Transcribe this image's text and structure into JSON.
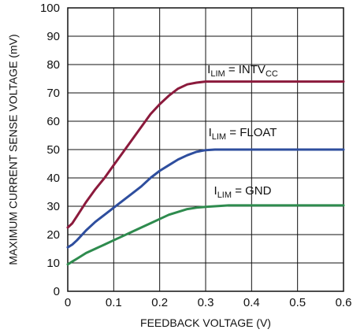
{
  "chart_data": {
    "type": "line",
    "title": "",
    "xlabel": "FEEDBACK VOLTAGE (V)",
    "ylabel": "MAXIMUM CURRENT SENSE VOLTAGE (mV)",
    "xlim": [
      0,
      0.6
    ],
    "ylim": [
      0,
      100
    ],
    "xticks": [
      "0",
      "0.1",
      "0.2",
      "0.3",
      "0.4",
      "0.5",
      "0.6"
    ],
    "yticks": [
      "0",
      "10",
      "20",
      "30",
      "40",
      "50",
      "60",
      "70",
      "80",
      "90",
      "100"
    ],
    "grid": true,
    "series": [
      {
        "label_prefix": "I",
        "label_sub": "LIM",
        "label_mid": " = INTV",
        "label_sub2": "CC",
        "color": "#8b1a3c",
        "x": [
          0,
          0.01,
          0.02,
          0.04,
          0.06,
          0.08,
          0.1,
          0.12,
          0.14,
          0.16,
          0.18,
          0.2,
          0.22,
          0.24,
          0.26,
          0.28,
          0.3,
          0.32,
          0.35,
          0.4,
          0.45,
          0.5,
          0.55,
          0.6
        ],
        "y": [
          22.5,
          24,
          26.5,
          31.5,
          36,
          40,
          44.5,
          49,
          53.5,
          58,
          62.5,
          66,
          69,
          71.5,
          73,
          73.6,
          74,
          74,
          74,
          74,
          74,
          74,
          74,
          74
        ]
      },
      {
        "label_prefix": "I",
        "label_sub": "LIM",
        "label_mid": " = FLOAT",
        "label_sub2": "",
        "color": "#2e4e9e",
        "x": [
          0,
          0.01,
          0.02,
          0.04,
          0.06,
          0.08,
          0.1,
          0.12,
          0.14,
          0.16,
          0.18,
          0.2,
          0.22,
          0.24,
          0.26,
          0.28,
          0.3,
          0.32,
          0.35,
          0.4,
          0.45,
          0.5,
          0.55,
          0.6
        ],
        "y": [
          15.5,
          16.5,
          18,
          21.5,
          24.5,
          27,
          29.5,
          32,
          34.5,
          37,
          40,
          42.5,
          44.5,
          46.5,
          48,
          49.2,
          49.8,
          50,
          50,
          50,
          50,
          50,
          50,
          50
        ]
      },
      {
        "label_prefix": "I",
        "label_sub": "LIM",
        "label_mid": " = GND",
        "label_sub2": "",
        "color": "#2e8b4e",
        "x": [
          0,
          0.01,
          0.02,
          0.04,
          0.06,
          0.08,
          0.1,
          0.12,
          0.14,
          0.16,
          0.18,
          0.2,
          0.22,
          0.24,
          0.26,
          0.28,
          0.3,
          0.32,
          0.35,
          0.4,
          0.45,
          0.5,
          0.55,
          0.6
        ],
        "y": [
          9.5,
          10.5,
          11.5,
          13.5,
          15,
          16.5,
          18,
          19.5,
          21,
          22.5,
          24,
          25.5,
          27,
          28,
          29,
          29.5,
          29.8,
          30,
          30.3,
          30.3,
          30.3,
          30.3,
          30.3,
          30.3
        ]
      }
    ]
  }
}
